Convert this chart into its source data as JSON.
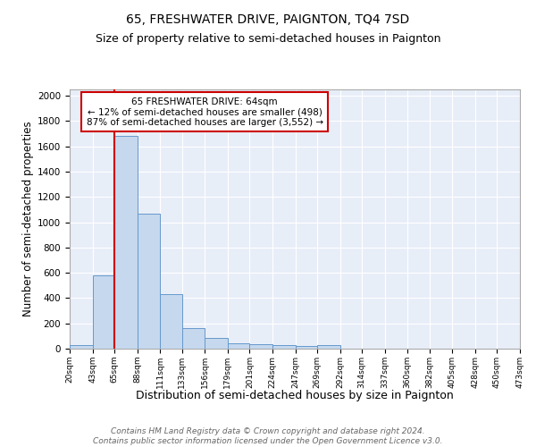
{
  "title": "65, FRESHWATER DRIVE, PAIGNTON, TQ4 7SD",
  "subtitle": "Size of property relative to semi-detached houses in Paignton",
  "xlabel": "Distribution of semi-detached houses by size in Paignton",
  "ylabel": "Number of semi-detached properties",
  "footer_line1": "Contains HM Land Registry data © Crown copyright and database right 2024.",
  "footer_line2": "Contains public sector information licensed under the Open Government Licence v3.0.",
  "bins": [
    20,
    43,
    65,
    88,
    111,
    133,
    156,
    179,
    201,
    224,
    247,
    269,
    292,
    314,
    337,
    360,
    382,
    405,
    428,
    450,
    473
  ],
  "counts": [
    25,
    580,
    1680,
    1070,
    430,
    160,
    85,
    40,
    35,
    25,
    18,
    25,
    0,
    0,
    0,
    0,
    0,
    0,
    0,
    0
  ],
  "bar_color": "#c5d8ee",
  "bar_edge_color": "#6699cc",
  "property_line_x": 65,
  "property_size": 64,
  "pct_smaller": 12,
  "count_smaller": 498,
  "pct_larger": 87,
  "count_larger": 3552,
  "annotation_box_color": "#cc0000",
  "annotation_label": "65 FRESHWATER DRIVE: 64sqm",
  "ylim": [
    0,
    2050
  ],
  "yticks": [
    0,
    200,
    400,
    600,
    800,
    1000,
    1200,
    1400,
    1600,
    1800,
    2000
  ],
  "background_color": "#e8eef8",
  "grid_color": "#ffffff",
  "title_fontsize": 10,
  "subtitle_fontsize": 9,
  "axis_label_fontsize": 8.5,
  "tick_fontsize": 7.5,
  "footer_fontsize": 6.5
}
